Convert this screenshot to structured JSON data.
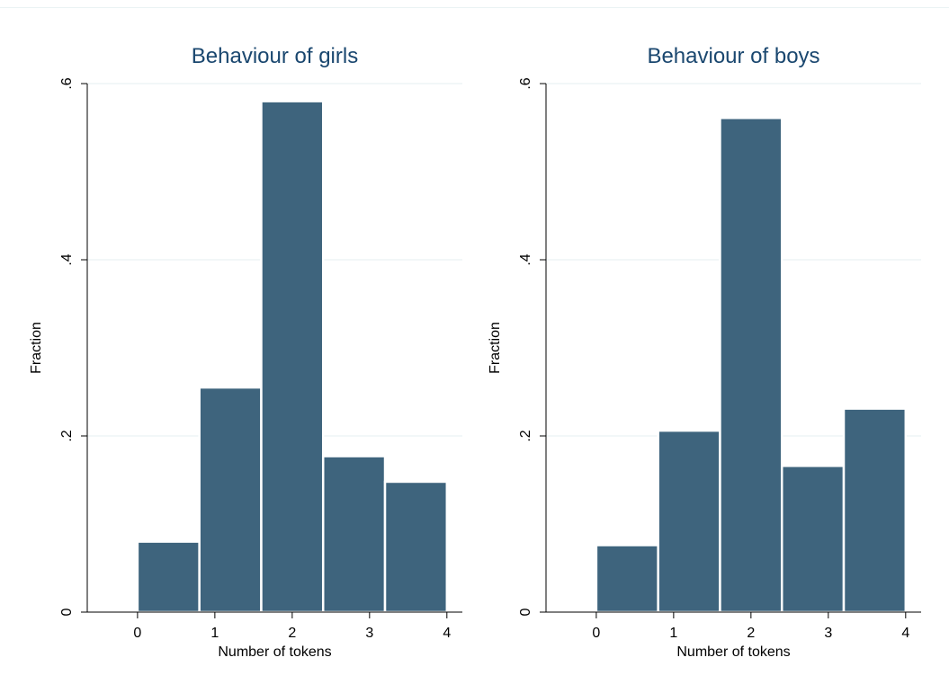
{
  "chart_data": [
    {
      "type": "bar",
      "title": "Behaviour of girls",
      "xlabel": "Number of tokens",
      "ylabel": "Fraction",
      "bins": [
        {
          "from": 0,
          "to": 0.8,
          "value": 0.08
        },
        {
          "from": 0.8,
          "to": 1.6,
          "value": 0.255
        },
        {
          "from": 1.6,
          "to": 2.4,
          "value": 0.58
        },
        {
          "from": 2.4,
          "to": 3.2,
          "value": 0.177
        },
        {
          "from": 3.2,
          "to": 4.0,
          "value": 0.148
        }
      ],
      "x_ticks": [
        {
          "value": 0,
          "label": "0"
        },
        {
          "value": 1,
          "label": "1"
        },
        {
          "value": 2,
          "label": "2"
        },
        {
          "value": 3,
          "label": "3"
        },
        {
          "value": 4,
          "label": "4"
        }
      ],
      "y_ticks": [
        {
          "value": 0,
          "label": "0"
        },
        {
          "value": 0.2,
          "label": ".2"
        },
        {
          "value": 0.4,
          "label": ".4"
        },
        {
          "value": 0.6,
          "label": ".6"
        }
      ],
      "xlim": [
        -0.65,
        4.2
      ],
      "ylim": [
        0,
        0.6
      ],
      "grid": true,
      "bar_color": "#3e647d",
      "title_color": "#1a476f",
      "grid_color": "#eaf2f3"
    },
    {
      "type": "bar",
      "title": "Behaviour of boys",
      "xlabel": "Number of tokens",
      "ylabel": "Fraction",
      "bins": [
        {
          "from": 0,
          "to": 0.8,
          "value": 0.076
        },
        {
          "from": 0.8,
          "to": 1.6,
          "value": 0.206
        },
        {
          "from": 1.6,
          "to": 2.4,
          "value": 0.561
        },
        {
          "from": 2.4,
          "to": 3.2,
          "value": 0.166
        },
        {
          "from": 3.2,
          "to": 4.0,
          "value": 0.231
        }
      ],
      "x_ticks": [
        {
          "value": 0,
          "label": "0"
        },
        {
          "value": 1,
          "label": "1"
        },
        {
          "value": 2,
          "label": "2"
        },
        {
          "value": 3,
          "label": "3"
        },
        {
          "value": 4,
          "label": "4"
        }
      ],
      "y_ticks": [
        {
          "value": 0,
          "label": "0"
        },
        {
          "value": 0.2,
          "label": ".2"
        },
        {
          "value": 0.4,
          "label": ".4"
        },
        {
          "value": 0.6,
          "label": ".6"
        }
      ],
      "xlim": [
        -0.65,
        4.2
      ],
      "ylim": [
        0,
        0.6
      ],
      "grid": true,
      "bar_color": "#3e647d",
      "title_color": "#1a476f",
      "grid_color": "#eaf2f3"
    }
  ]
}
